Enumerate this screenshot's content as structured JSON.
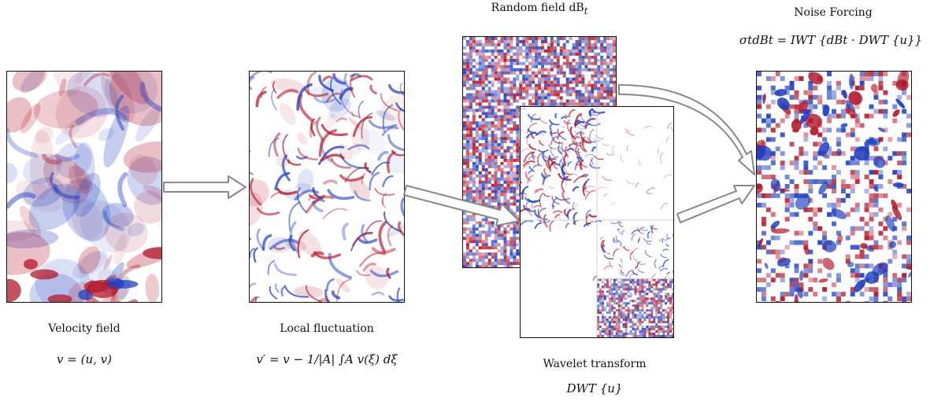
{
  "panels": {
    "velocity": {
      "caption": "Velocity field",
      "equation": "v = (u, v)"
    },
    "fluctuation": {
      "caption": "Local fluctuation",
      "equation": "v′ = v − 1/|A| ∫A v(ξ) dξ"
    },
    "random": {
      "caption": "Random field dB",
      "caption_sub": "t"
    },
    "wavelet": {
      "caption": "Wavelet transform",
      "equation": "DWT {u}"
    },
    "forcing": {
      "caption": "Noise Forcing",
      "equation": "σtdBt = IWT {dBt · DWT {u}}"
    }
  },
  "colors": {
    "red": "#b2182b",
    "blue": "#1f3fbf",
    "neutral": "#ffffff",
    "arrow": "#888888",
    "border": "#111111"
  }
}
